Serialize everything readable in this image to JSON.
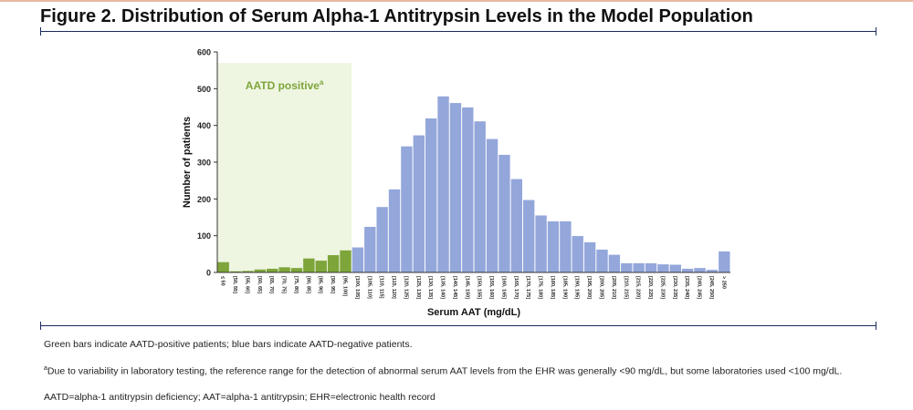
{
  "figure": {
    "title": "Figure 2. Distribution of Serum Alpha-1 Antitrypsin Levels in the Model Population",
    "footnote_colors": "Green bars indicate AATD-positive patients; blue bars indicate AATD-negative patients.",
    "footnote_a_marker": "a",
    "footnote_a": "Due to variability in laboratory testing, the reference range for the detection of abnormal serum AAT levels from the EHR was generally <90 mg/dL, but some laboratories used <100 mg/dL.",
    "abbreviations": "AATD=alpha-1 antitrypsin deficiency; AAT=alpha-1 antitrypsin; EHR=electronic health record"
  },
  "chart_data": {
    "type": "bar",
    "xlabel": "Serum AAT (mg/dL)",
    "ylabel": "Number of patients",
    "ylim": [
      0,
      600
    ],
    "yticks": [
      0,
      100,
      200,
      300,
      400,
      500,
      600
    ],
    "grid": false,
    "categories": [
      "≤ 50",
      "[50, 55]",
      "[55, 60]",
      "[60, 65]",
      "[65, 70]",
      "[70, 75]",
      "[75, 80]",
      "[80, 85]",
      "[85, 90]",
      "[90, 95]",
      "[95, 100]",
      "[100, 105]",
      "[105, 110]",
      "[110, 115]",
      "[115, 120]",
      "[120, 125]",
      "[125, 130]",
      "[130, 135]",
      "[135, 140]",
      "[140, 145]",
      "[145, 150]",
      "[150, 155]",
      "[155, 160]",
      "[160, 165]",
      "[165, 170]",
      "[170, 175]",
      "[175, 180]",
      "[180, 185]",
      "[185, 190]",
      "[190, 195]",
      "[195, 200]",
      "[200, 205]",
      "[205, 210]",
      "[210, 215]",
      "[215, 220]",
      "[220, 225]",
      "[225, 230]",
      "[230, 235]",
      "[235, 240]",
      "[240, 245]",
      "[245, 250]",
      "> 250"
    ],
    "values": [
      28,
      3,
      4,
      8,
      10,
      14,
      12,
      38,
      32,
      47,
      60,
      68,
      124,
      178,
      226,
      343,
      373,
      419,
      479,
      461,
      449,
      411,
      363,
      320,
      254,
      197,
      155,
      139,
      139,
      99,
      82,
      62,
      48,
      25,
      25,
      25,
      22,
      21,
      10,
      12,
      7,
      57
    ],
    "positive_count": 11,
    "colors": {
      "positive": "#7ea53a",
      "negative": "#94a7db",
      "region": "#eef5e1",
      "axis": "#333333"
    },
    "annotation": {
      "text": "AATD positive",
      "marker": "a",
      "placement": "inside shaded region, top",
      "region_ylim": [
        0,
        570
      ]
    }
  }
}
